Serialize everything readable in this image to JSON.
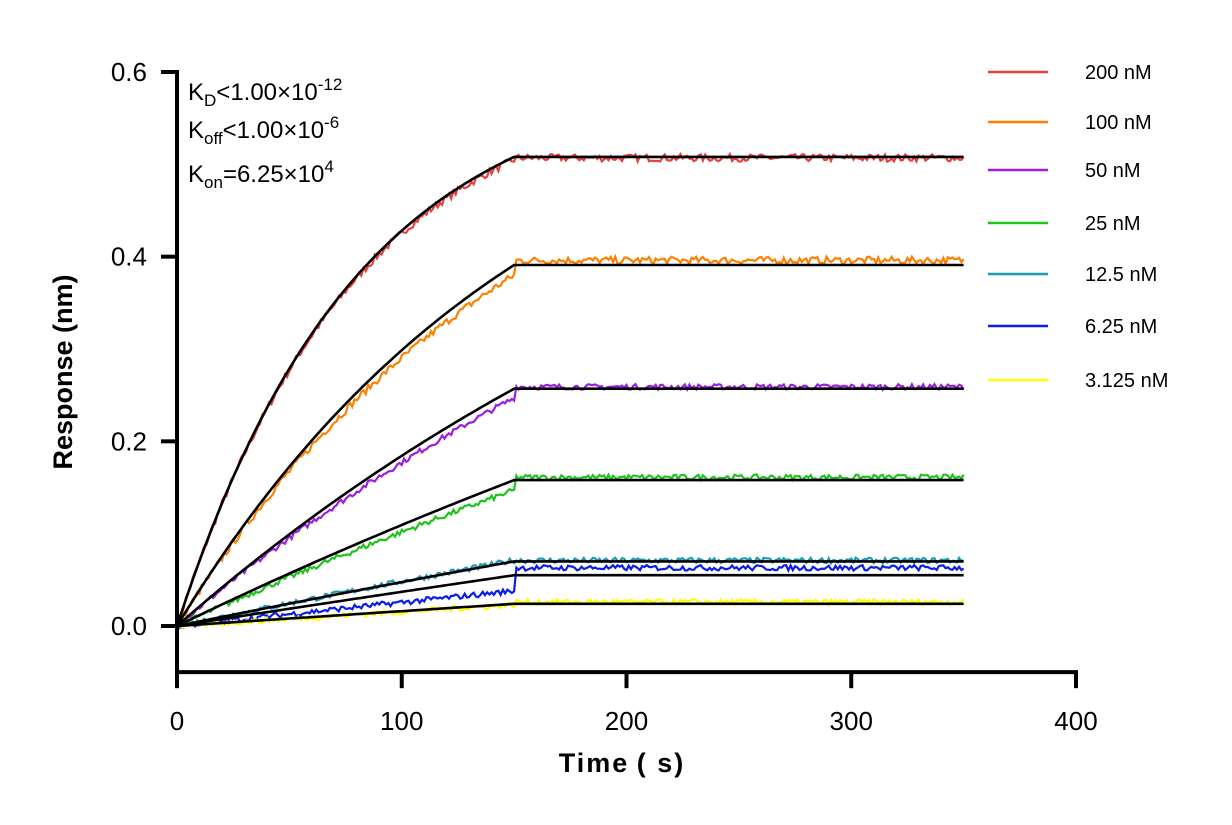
{
  "chart_data": {
    "type": "line",
    "xlabel": "Time ( s)",
    "ylabel": "Response (nm)",
    "xlim": [
      0,
      400
    ],
    "ylim": [
      -0.05,
      0.6
    ],
    "xticks": [
      "0",
      "100",
      "200",
      "300",
      "400"
    ],
    "xtick_values": [
      0,
      100,
      200,
      300,
      400
    ],
    "yticks": [
      "0.0",
      "0.2",
      "0.4",
      "0.6"
    ],
    "ytick_values": [
      0,
      0.2,
      0.4,
      0.6
    ],
    "grid": false,
    "legend_position": "top-right",
    "association_end_s": 150,
    "end_s": 350,
    "annotations": {
      "kd": {
        "sym": "K",
        "sub": "D",
        "rel": "<1.00×10",
        "sup": "-12"
      },
      "koff": {
        "sym": "K",
        "sub": "off",
        "rel": "<1.00×10",
        "sup": "-6"
      },
      "kon": {
        "sym": "K",
        "sub": "on",
        "rel": "=6.25×10",
        "sup": "4"
      }
    },
    "fit_color": "#000000",
    "series": [
      {
        "name": "200 nM",
        "color": "#e8413c",
        "fit_plateau": 0.508,
        "kobs": 0.0125,
        "data_assoc_end": 0.505,
        "data_plateau": 0.507,
        "noise": 0.004
      },
      {
        "name": "100 nM",
        "color": "#ff8000",
        "fit_plateau": 0.391,
        "kobs": 0.00625,
        "data_assoc_end": 0.38,
        "data_plateau": 0.396,
        "noise": 0.004
      },
      {
        "name": "50 nM",
        "color": "#9b1fe0",
        "fit_plateau": 0.257,
        "kobs": 0.003125,
        "data_assoc_end": 0.247,
        "data_plateau": 0.259,
        "noise": 0.003
      },
      {
        "name": "25 nM",
        "color": "#1ec31e",
        "fit_plateau": 0.158,
        "kobs": 0.0015625,
        "data_assoc_end": 0.147,
        "data_plateau": 0.161,
        "noise": 0.003
      },
      {
        "name": "12.5 nM",
        "color": "#1f9bb0",
        "fit_plateau": 0.07,
        "kobs": 0.00078,
        "data_assoc_end": 0.071,
        "data_plateau": 0.071,
        "noise": 0.003
      },
      {
        "name": "6.25 nM",
        "color": "#0a1ee6",
        "fit_plateau": 0.055,
        "kobs": 0.00039,
        "data_assoc_end": 0.038,
        "data_plateau": 0.063,
        "noise": 0.003
      },
      {
        "name": "3.125 nM",
        "color": "#ffff00",
        "fit_plateau": 0.024,
        "kobs": 0.0002,
        "data_assoc_end": 0.023,
        "data_plateau": 0.026,
        "noise": 0.003
      }
    ]
  }
}
